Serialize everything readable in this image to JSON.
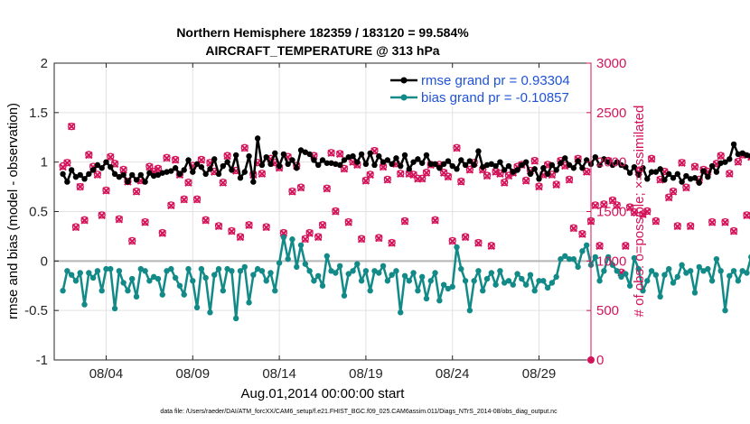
{
  "chart_data": {
    "type": "line",
    "title_line1": "Northern Hemisphere 182359 / 183120 = 99.584%",
    "title_line2": "AIRCRAFT_TEMPERATURE @ 313 hPa",
    "xlabel": "Aug.01,2014 00:00:00 start",
    "ylabel_left": "rmse and bias (model - observation)",
    "ylabel_right": "# of obs: o=possible; ×=assimilated",
    "footer": "data file: /Users/raeder/DAI/ATM_forcXX/CAM6_setup/f.e21.FHIST_BGC.f09_025.CAM6assim.011/Diags_NTrS_2014-08/obs_diag_output.nc",
    "x_range_days": [
      0.5,
      31.5
    ],
    "ylim_left": [
      -1,
      2
    ],
    "ylim_right": [
      0,
      3000
    ],
    "x_ticks": [
      {
        "day": 3.5,
        "label": "08/04"
      },
      {
        "day": 8.5,
        "label": "08/09"
      },
      {
        "day": 13.5,
        "label": "08/14"
      },
      {
        "day": 18.5,
        "label": "08/19"
      },
      {
        "day": 23.5,
        "label": "08/24"
      },
      {
        "day": 28.5,
        "label": "08/29"
      }
    ],
    "y_ticks_left": [
      "-1",
      "-0.5",
      "0",
      "0.5",
      "1",
      "1.5",
      "2"
    ],
    "y_ticks_right": [
      "0",
      "500",
      "1000",
      "1500",
      "2000",
      "2500",
      "3000"
    ],
    "colors": {
      "rmse": "#000000",
      "bias": "#128a87",
      "obs": "#d4145a",
      "legend_text": "#1f53d6",
      "zero_line": "#b5b5b5",
      "grid": "#e2e2e2"
    },
    "series": [
      {
        "name": "rmse grand pr = 0.93304",
        "key": "rmse",
        "values": [
          0.88,
          0.8,
          0.92,
          0.85,
          0.87,
          0.83,
          0.88,
          0.92,
          0.97,
          0.94,
          1.0,
          0.95,
          0.88,
          0.85,
          0.87,
          0.8,
          0.87,
          0.82,
          0.87,
          0.8,
          0.89,
          0.86,
          0.87,
          0.89,
          0.9,
          0.91,
          0.94,
          0.88,
          0.92,
          1.02,
          0.9,
          0.98,
          0.95,
          0.88,
          0.93,
          1.03,
          0.88,
          0.96,
          1.0,
          0.92,
          1.07,
          0.84,
          0.9,
          1.06,
          0.8,
          1.24,
          0.97,
          1.05,
          0.98,
          1.09,
          0.96,
          1.08,
          0.98,
          1.02,
          0.94,
          1.12,
          1.1,
          1.08,
          1.02,
          0.97,
          1.02,
          0.99,
          0.99,
          0.98,
          0.97,
          1.02,
          1.05,
          1.06,
          1.0,
          1.08,
          0.98,
          1.09,
          0.97,
          1.06,
          1.0,
          1.02,
          0.98,
          1.04,
          0.96,
          1.07,
          0.93,
          1.0,
          1.03,
          0.99,
          1.07,
          0.98,
          0.98,
          0.94,
          0.98,
          1.01,
          0.96,
          0.93,
          1.02,
          0.97,
          1.01,
          0.97,
          1.11,
          0.95,
          0.97,
          0.98,
          0.96,
          1.0,
          0.92,
          0.96,
          0.9,
          0.92,
          0.97,
          1.0,
          0.88,
          0.93,
          0.83,
          0.94,
          0.88,
          0.97,
          0.92,
          0.99,
          1.04,
          0.97,
          0.94,
          1.01,
          0.94,
          1.02,
          0.98,
          1.05,
          0.97,
          1.03,
          1.0,
          0.97,
          1.0,
          0.97,
          0.95,
          0.89,
          0.95,
          0.87,
          0.94,
          0.83,
          0.9,
          0.9,
          0.93,
          0.82,
          0.88,
          0.84,
          0.88,
          0.8,
          0.86,
          0.83,
          0.84,
          0.79,
          0.91,
          0.85,
          0.96,
          0.9,
          0.99,
          1.0,
          1.03,
          1.18,
          1.08,
          1.09,
          1.07,
          1.06
        ]
      },
      {
        "name": "bias grand pr = -0.10857",
        "key": "bias",
        "values": [
          -0.3,
          -0.1,
          -0.14,
          -0.2,
          -0.12,
          -0.44,
          -0.12,
          -0.17,
          -0.1,
          -0.3,
          -0.08,
          -0.08,
          -0.48,
          -0.1,
          -0.22,
          -0.3,
          -0.18,
          -0.36,
          -0.08,
          -0.1,
          -0.2,
          -0.16,
          -0.18,
          -0.34,
          -0.1,
          -0.08,
          -0.17,
          -0.25,
          -0.34,
          -0.08,
          -0.2,
          -0.47,
          -0.08,
          -0.17,
          -0.52,
          -0.14,
          -0.08,
          -0.3,
          -0.08,
          -0.1,
          -0.58,
          -0.1,
          -0.06,
          -0.42,
          -0.14,
          -0.08,
          -0.1,
          -0.2,
          -0.12,
          -0.3,
          -0.02,
          0.24,
          0.02,
          0.22,
          -0.06,
          0.16,
          -0.03,
          -0.1,
          -0.2,
          -0.15,
          -0.25,
          0.05,
          -0.1,
          -0.12,
          -0.05,
          -0.35,
          -0.13,
          -0.1,
          -0.03,
          -0.2,
          -0.1,
          -0.3,
          -0.1,
          -0.12,
          -0.05,
          -0.2,
          -0.14,
          -0.1,
          -0.52,
          -0.15,
          -0.2,
          -0.12,
          -0.3,
          -0.16,
          -0.38,
          -0.2,
          -0.12,
          -0.4,
          -0.24,
          -0.28,
          -0.26,
          0.14,
          -0.08,
          -0.2,
          -0.5,
          -0.2,
          -0.1,
          -0.3,
          -0.18,
          -0.12,
          -0.24,
          -0.1,
          -0.22,
          -0.2,
          -0.24,
          -0.13,
          -0.18,
          -0.24,
          -0.14,
          -0.3,
          -0.2,
          -0.2,
          -0.27,
          -0.22,
          -0.16,
          0.02,
          0.05,
          0.02,
          0.02,
          -0.06,
          0.1,
          0.16,
          -0.04,
          0.04,
          -0.2,
          -0.1,
          0.04,
          -0.04,
          -0.1,
          -0.16,
          -0.13,
          -0.25,
          0.03,
          -0.08,
          -0.3,
          -0.2,
          -0.1,
          -0.14,
          -0.36,
          -0.14,
          -0.08,
          -0.22,
          -0.16,
          -0.04,
          -0.12,
          -0.1,
          -0.32,
          -0.06,
          -0.1,
          -0.08,
          -0.2,
          0.02,
          -0.1,
          -0.5,
          -0.15,
          -0.1,
          -0.2,
          -0.1,
          -0.12,
          0.04
        ]
      },
      {
        "name": "obs assimilated",
        "key": "obs",
        "values": [
          1950,
          1990,
          2360,
          1340,
          1750,
          1410,
          2070,
          1950,
          1870,
          1460,
          1710,
          2050,
          1980,
          1420,
          1920,
          1800,
          1200,
          1700,
          1810,
          1390,
          1950,
          1900,
          1930,
          1280,
          2040,
          1560,
          2020,
          1870,
          1620,
          1790,
          1960,
          1620,
          2020,
          1410,
          1990,
          1900,
          1350,
          1790,
          2060,
          1300,
          1910,
          1240,
          2140,
          1360,
          1870,
          1990,
          1880,
          1340,
          2030,
          1990,
          1940,
          1280,
          2050,
          1700,
          1960,
          1740,
          1220,
          1280,
          2060,
          1240,
          1360,
          1730,
          2090,
          1500,
          2080,
          1930,
          1390,
          2000,
          1970,
          1220,
          1810,
          1870,
          2110,
          1230,
          1950,
          1820,
          1180,
          1980,
          1880,
          1400,
          1880,
          1870,
          1830,
          1830,
          1890,
          1970,
          1410,
          1970,
          1890,
          1850,
          1200,
          2140,
          1800,
          1240,
          1920,
          1990,
          1180,
          1920,
          1860,
          1150,
          1900,
          1880,
          1790,
          1860,
          1890,
          1950,
          1970,
          1810,
          1910,
          2010,
          1750,
          1870,
          1970,
          1870,
          1770,
          2010,
          1960,
          1820,
          1330,
          2030,
          1270,
          1900,
          1400,
          1560,
          1150,
          1570,
          2010,
          1610,
          1560,
          880,
          1150,
          1540,
          1490,
          1900,
          1470,
          1500,
          2030,
          1400,
          1820,
          1900,
          1640,
          1700,
          1350,
          1990,
          1740,
          1350,
          1950,
          1820,
          1920,
          1900,
          1390,
          1980,
          2060,
          1390,
          1880,
          1300,
          2000,
          2070,
          1460,
          2050
        ]
      },
      {
        "name": "obs possible",
        "key": "obs_possible",
        "values": [
          1960,
          1995,
          2360,
          1345,
          1750,
          1415,
          2075,
          1955,
          1875,
          1465,
          1715,
          2055,
          1985,
          1425,
          1925,
          1805,
          1205,
          1705,
          1815,
          1395,
          1955,
          1905,
          1935,
          1285,
          2045,
          1565,
          2025,
          1875,
          1625,
          1795,
          1965,
          1625,
          2025,
          1415,
          1995,
          1905,
          1355,
          1795,
          2065,
          1305,
          1915,
          1245,
          2145,
          1365,
          1875,
          1995,
          1885,
          1345,
          2035,
          1995,
          1945,
          1285,
          2055,
          1705,
          1965,
          1745,
          1225,
          1285,
          2065,
          1245,
          1365,
          1735,
          2095,
          1505,
          2085,
          1935,
          1395,
          2005,
          1975,
          1225,
          1815,
          1875,
          2115,
          1235,
          1955,
          1825,
          1185,
          1985,
          1885,
          1405,
          1885,
          1875,
          1835,
          1835,
          1895,
          1975,
          1415,
          1975,
          1895,
          1855,
          1205,
          2145,
          1805,
          1245,
          1925,
          1995,
          1185,
          1925,
          1865,
          1155,
          1905,
          1885,
          1795,
          1865,
          1895,
          1955,
          1975,
          1815,
          1915,
          2015,
          1755,
          1875,
          1975,
          1875,
          1775,
          2015,
          1965,
          1825,
          1335,
          2035,
          1275,
          1905,
          1405,
          1565,
          1155,
          1575,
          2015,
          1615,
          1565,
          885,
          1155,
          1545,
          1495,
          1905,
          1475,
          1505,
          2035,
          1405,
          1825,
          1905,
          1645,
          1705,
          1355,
          1995,
          1745,
          1355,
          1955,
          1825,
          1925,
          1905,
          1395,
          1985,
          2065,
          1395,
          1885,
          1305,
          2005,
          2075,
          1465,
          2055
        ]
      }
    ],
    "extra_obs_points": [
      {
        "day": 31.5,
        "value": 0
      }
    ]
  }
}
